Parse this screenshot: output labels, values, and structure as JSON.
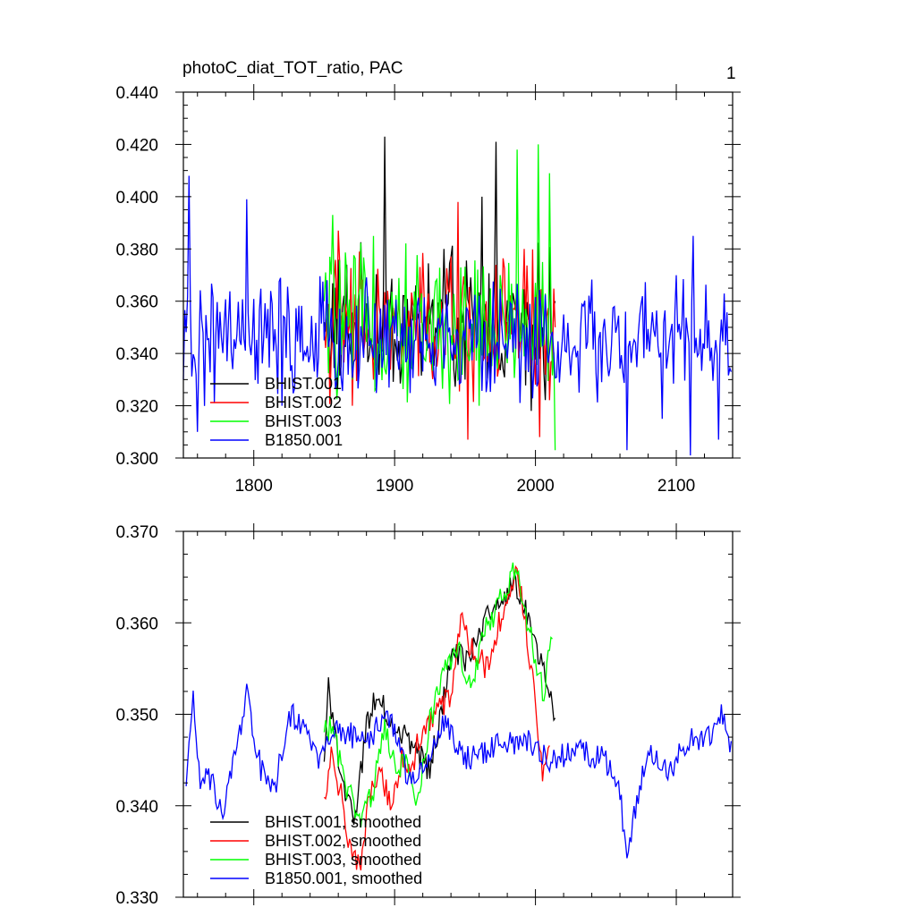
{
  "chart_data": [
    {
      "type": "line",
      "title": "photoC_diat_TOT_ratio, PAC",
      "corner_label": "1",
      "xlim": [
        1750,
        2140
      ],
      "ylim": [
        0.3,
        0.44
      ],
      "xticks": [
        1800,
        1900,
        2000,
        2100
      ],
      "xtick_labels": [
        "1800",
        "1900",
        "2000",
        "2100"
      ],
      "yticks": [
        0.3,
        0.32,
        0.34,
        0.36,
        0.38,
        0.4,
        0.42,
        0.44
      ],
      "ytick_labels": [
        "0.300",
        "0.320",
        "0.340",
        "0.360",
        "0.380",
        "0.400",
        "0.420",
        "0.440"
      ],
      "legend_placement": "bottom-left",
      "series": [
        {
          "name": "BHIST.001",
          "color": "#000000",
          "x_start": 1850,
          "x_end": 2014,
          "key_points": [
            [
              1850,
              0.352
            ],
            [
              1862,
              0.335
            ],
            [
              1875,
              0.37
            ],
            [
              1893,
              0.423
            ],
            [
              1905,
              0.335
            ],
            [
              1920,
              0.35
            ],
            [
              1935,
              0.38
            ],
            [
              1950,
              0.33
            ],
            [
              1962,
              0.4
            ],
            [
              1972,
              0.421
            ],
            [
              1985,
              0.36
            ],
            [
              1997,
              0.318
            ],
            [
              2005,
              0.35
            ],
            [
              2014,
              0.36
            ]
          ],
          "mean": 0.351,
          "amplitude": 0.024
        },
        {
          "name": "BHIST.002",
          "color": "#ff0000",
          "x_start": 1850,
          "x_end": 2014,
          "key_points": [
            [
              1850,
              0.35
            ],
            [
              1860,
              0.387
            ],
            [
              1870,
              0.32
            ],
            [
              1885,
              0.33
            ],
            [
              1905,
              0.336
            ],
            [
              1915,
              0.345
            ],
            [
              1930,
              0.335
            ],
            [
              1945,
              0.398
            ],
            [
              1952,
              0.307
            ],
            [
              1965,
              0.36
            ],
            [
              1980,
              0.352
            ],
            [
              1992,
              0.38
            ],
            [
              2003,
              0.308
            ],
            [
              2014,
              0.35
            ]
          ],
          "mean": 0.35,
          "amplitude": 0.024
        },
        {
          "name": "BHIST.003",
          "color": "#00ff00",
          "x_start": 1850,
          "x_end": 2014,
          "key_points": [
            [
              1850,
              0.36
            ],
            [
              1856,
              0.393
            ],
            [
              1870,
              0.33
            ],
            [
              1885,
              0.385
            ],
            [
              1900,
              0.35
            ],
            [
              1920,
              0.34
            ],
            [
              1935,
              0.35
            ],
            [
              1945,
              0.33
            ],
            [
              1960,
              0.32
            ],
            [
              1975,
              0.37
            ],
            [
              1987,
              0.418
            ],
            [
              2002,
              0.42
            ],
            [
              2010,
              0.409
            ],
            [
              2014,
              0.303
            ]
          ],
          "mean": 0.351,
          "amplitude": 0.025
        },
        {
          "name": "B1850.001",
          "color": "#0000ff",
          "x_start": 1750,
          "x_end": 2139,
          "key_points": [
            [
              1750,
              0.33
            ],
            [
              1754,
              0.408
            ],
            [
              1760,
              0.31
            ],
            [
              1795,
              0.399
            ],
            [
              1820,
              0.32
            ],
            [
              1850,
              0.345
            ],
            [
              1950,
              0.345
            ],
            [
              2050,
              0.345
            ],
            [
              2065,
              0.303
            ],
            [
              2090,
              0.315
            ],
            [
              2110,
              0.301
            ],
            [
              2112,
              0.385
            ],
            [
              2130,
              0.307
            ],
            [
              2139,
              0.333
            ]
          ],
          "mean": 0.345,
          "amplitude": 0.02
        }
      ]
    },
    {
      "type": "line",
      "xlim": [
        1750,
        2140
      ],
      "ylim": [
        0.33,
        0.37
      ],
      "xticks": [
        1800,
        1900,
        2000,
        2100
      ],
      "yticks": [
        0.33,
        0.34,
        0.35,
        0.36,
        0.37
      ],
      "ytick_labels": [
        "0.330",
        "0.340",
        "0.350",
        "0.360",
        "0.370"
      ],
      "legend_placement": "bottom-left",
      "series": [
        {
          "name": "BHIST.001, smoothed",
          "color": "#000000",
          "key_points": [
            [
              1850,
              0.345
            ],
            [
              1853,
              0.353
            ],
            [
              1858,
              0.347
            ],
            [
              1865,
              0.342
            ],
            [
              1872,
              0.338
            ],
            [
              1880,
              0.349
            ],
            [
              1888,
              0.352
            ],
            [
              1895,
              0.35
            ],
            [
              1905,
              0.348
            ],
            [
              1915,
              0.346
            ],
            [
              1925,
              0.344
            ],
            [
              1935,
              0.352
            ],
            [
              1943,
              0.357
            ],
            [
              1950,
              0.356
            ],
            [
              1960,
              0.358
            ],
            [
              1970,
              0.362
            ],
            [
              1980,
              0.363
            ],
            [
              1985,
              0.365
            ],
            [
              1992,
              0.362
            ],
            [
              2000,
              0.358
            ],
            [
              2008,
              0.353
            ],
            [
              2014,
              0.35
            ]
          ],
          "noise": 0.0015
        },
        {
          "name": "BHIST.002, smoothed",
          "color": "#ff0000",
          "key_points": [
            [
              1850,
              0.341
            ],
            [
              1855,
              0.346
            ],
            [
              1862,
              0.341
            ],
            [
              1870,
              0.334
            ],
            [
              1875,
              0.333
            ],
            [
              1882,
              0.341
            ],
            [
              1890,
              0.344
            ],
            [
              1898,
              0.34
            ],
            [
              1905,
              0.345
            ],
            [
              1912,
              0.344
            ],
            [
              1920,
              0.349
            ],
            [
              1930,
              0.35
            ],
            [
              1940,
              0.352
            ],
            [
              1947,
              0.36
            ],
            [
              1955,
              0.357
            ],
            [
              1965,
              0.355
            ],
            [
              1972,
              0.359
            ],
            [
              1980,
              0.362
            ],
            [
              1986,
              0.366
            ],
            [
              1993,
              0.36
            ],
            [
              2000,
              0.351
            ],
            [
              2005,
              0.343
            ],
            [
              2010,
              0.348
            ]
          ],
          "noise": 0.0015
        },
        {
          "name": "BHIST.003, smoothed",
          "color": "#00ff00",
          "key_points": [
            [
              1850,
              0.348
            ],
            [
              1856,
              0.349
            ],
            [
              1863,
              0.343
            ],
            [
              1870,
              0.341
            ],
            [
              1877,
              0.338
            ],
            [
              1885,
              0.342
            ],
            [
              1893,
              0.348
            ],
            [
              1900,
              0.345
            ],
            [
              1910,
              0.344
            ],
            [
              1915,
              0.34
            ],
            [
              1925,
              0.349
            ],
            [
              1935,
              0.355
            ],
            [
              1945,
              0.357
            ],
            [
              1955,
              0.353
            ],
            [
              1963,
              0.359
            ],
            [
              1970,
              0.361
            ],
            [
              1978,
              0.363
            ],
            [
              1986,
              0.366
            ],
            [
              1993,
              0.361
            ],
            [
              2000,
              0.356
            ],
            [
              2006,
              0.352
            ],
            [
              2012,
              0.359
            ]
          ],
          "noise": 0.0015
        },
        {
          "name": "B1850.001, smoothed",
          "color": "#0000ff",
          "key_points": [
            [
              1752,
              0.342
            ],
            [
              1757,
              0.352
            ],
            [
              1762,
              0.343
            ],
            [
              1770,
              0.343
            ],
            [
              1778,
              0.339
            ],
            [
              1785,
              0.344
            ],
            [
              1795,
              0.352
            ],
            [
              1805,
              0.344
            ],
            [
              1815,
              0.342
            ],
            [
              1825,
              0.35
            ],
            [
              1835,
              0.349
            ],
            [
              1845,
              0.345
            ],
            [
              1855,
              0.348
            ],
            [
              1865,
              0.348
            ],
            [
              1880,
              0.347
            ],
            [
              1895,
              0.35
            ],
            [
              1910,
              0.343
            ],
            [
              1925,
              0.345
            ],
            [
              1935,
              0.349
            ],
            [
              1950,
              0.345
            ],
            [
              1965,
              0.346
            ],
            [
              1980,
              0.347
            ],
            [
              1995,
              0.347
            ],
            [
              2010,
              0.345
            ],
            [
              2030,
              0.346
            ],
            [
              2050,
              0.345
            ],
            [
              2060,
              0.341
            ],
            [
              2065,
              0.335
            ],
            [
              2072,
              0.34
            ],
            [
              2080,
              0.346
            ],
            [
              2095,
              0.344
            ],
            [
              2110,
              0.347
            ],
            [
              2125,
              0.348
            ],
            [
              2132,
              0.35
            ],
            [
              2139,
              0.346
            ]
          ],
          "noise": 0.0014
        }
      ]
    }
  ]
}
